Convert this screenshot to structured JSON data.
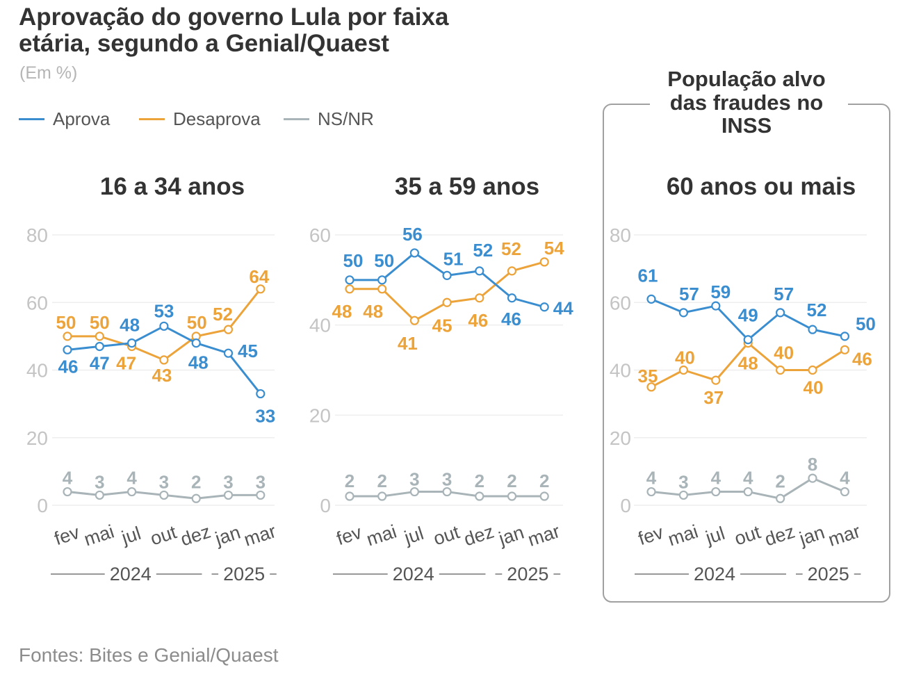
{
  "title_lines": [
    "Aprovação do governo Lula por faixa",
    "etária, segundo a Genial/Quaest"
  ],
  "subtitle": "(Em %)",
  "legend": [
    {
      "label": "Aprova",
      "color": "#3a8ed0"
    },
    {
      "label": "Desaprova",
      "color": "#eca33a"
    },
    {
      "label": "NS/NR",
      "color": "#a9b4b8"
    }
  ],
  "highlight_box": {
    "lines": [
      "População alvo",
      "das fraudes no",
      "INSS"
    ]
  },
  "source": "Fontes: Bites e Genial/Quaest",
  "chart_data": [
    {
      "type": "line",
      "title": "16 a 34 anos",
      "categories": [
        "fev",
        "mai",
        "jul",
        "out",
        "dez",
        "jan",
        "mar"
      ],
      "years": [
        {
          "label": "2024",
          "from": "fev",
          "to": "dez"
        },
        {
          "label": "2025",
          "from": "jan",
          "to": "mar"
        }
      ],
      "ylim": [
        0,
        80
      ],
      "yticks": [
        0,
        20,
        40,
        60,
        80
      ],
      "series": [
        {
          "name": "Aprova",
          "values": [
            46,
            47,
            48,
            53,
            48,
            45,
            33
          ]
        },
        {
          "name": "Desaprova",
          "values": [
            50,
            50,
            47,
            43,
            50,
            52,
            64
          ]
        },
        {
          "name": "NS/NR",
          "values": [
            4,
            3,
            4,
            3,
            2,
            3,
            3
          ]
        }
      ]
    },
    {
      "type": "line",
      "title": "35 a 59 anos",
      "categories": [
        "fev",
        "mai",
        "jul",
        "out",
        "dez",
        "jan",
        "mar"
      ],
      "years": [
        {
          "label": "2024",
          "from": "fev",
          "to": "dez"
        },
        {
          "label": "2025",
          "from": "jan",
          "to": "mar"
        }
      ],
      "ylim": [
        0,
        60
      ],
      "yticks": [
        0,
        20,
        40,
        60
      ],
      "series": [
        {
          "name": "Aprova",
          "values": [
            50,
            50,
            56,
            51,
            52,
            46,
            44
          ]
        },
        {
          "name": "Desaprova",
          "values": [
            48,
            48,
            41,
            45,
            46,
            52,
            54
          ]
        },
        {
          "name": "NS/NR",
          "values": [
            2,
            2,
            3,
            3,
            2,
            2,
            2
          ]
        }
      ]
    },
    {
      "type": "line",
      "title": "60 anos ou mais",
      "categories": [
        "fev",
        "mai",
        "jul",
        "out",
        "dez",
        "jan",
        "mar"
      ],
      "years": [
        {
          "label": "2024",
          "from": "fev",
          "to": "dez"
        },
        {
          "label": "2025",
          "from": "jan",
          "to": "mar"
        }
      ],
      "ylim": [
        0,
        80
      ],
      "yticks": [
        0,
        20,
        40,
        60,
        80
      ],
      "series": [
        {
          "name": "Aprova",
          "values": [
            61,
            57,
            59,
            49,
            57,
            52,
            50
          ]
        },
        {
          "name": "Desaprova",
          "values": [
            35,
            40,
            37,
            48,
            40,
            40,
            46
          ]
        },
        {
          "name": "NS/NR",
          "values": [
            4,
            3,
            4,
            4,
            2,
            8,
            4
          ]
        }
      ]
    }
  ]
}
